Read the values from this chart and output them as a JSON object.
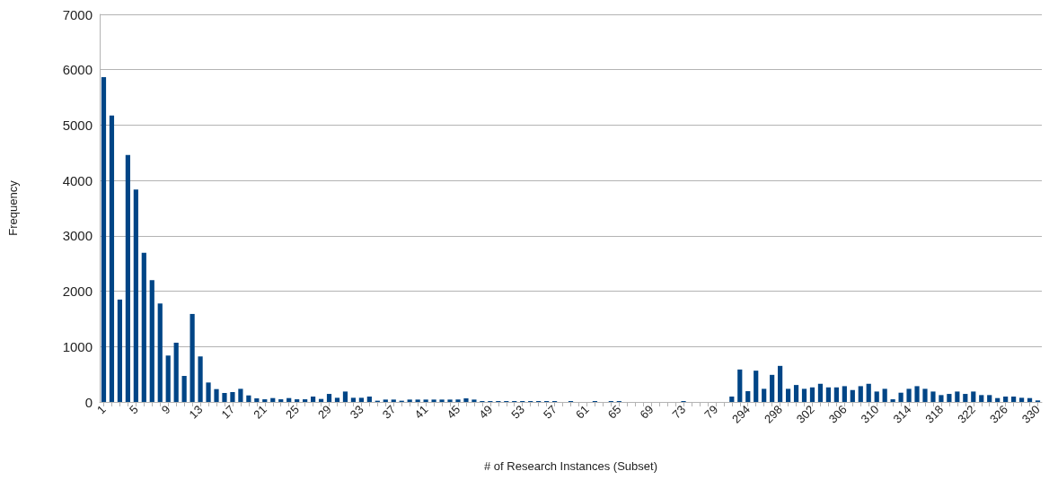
{
  "chart_data": {
    "type": "bar",
    "xlabel": "# of Research Instances (Subset)",
    "ylabel": "Frequency",
    "categories": [
      "1",
      null,
      null,
      null,
      "5",
      null,
      null,
      null,
      "9",
      null,
      null,
      null,
      "13",
      null,
      null,
      null,
      "17",
      null,
      null,
      null,
      "21",
      null,
      null,
      null,
      "25",
      null,
      null,
      null,
      "29",
      null,
      null,
      null,
      "33",
      null,
      null,
      null,
      "37",
      null,
      null,
      null,
      "41",
      null,
      null,
      null,
      "45",
      null,
      null,
      null,
      "49",
      null,
      null,
      null,
      "53",
      null,
      null,
      null,
      "57",
      null,
      null,
      null,
      "61",
      null,
      null,
      null,
      "65",
      null,
      null,
      null,
      "69",
      null,
      null,
      null,
      "73",
      null,
      null,
      null,
      "79",
      null,
      null,
      null,
      "294",
      null,
      null,
      null,
      "298",
      null,
      null,
      null,
      "302",
      null,
      null,
      null,
      "306",
      null,
      null,
      null,
      "310",
      null,
      null,
      null,
      "314",
      null,
      null,
      null,
      "318",
      null,
      null,
      null,
      "322",
      null,
      null,
      null,
      "326",
      null,
      null,
      null,
      "330"
    ],
    "values": [
      5865,
      5173,
      1849,
      4459,
      3838,
      2692,
      2200,
      1778,
      838,
      1070,
      470,
      1589,
      822,
      351,
      232,
      162,
      178,
      237,
      118,
      65,
      48,
      70,
      48,
      70,
      48,
      48,
      97,
      54,
      145,
      75,
      188,
      75,
      75,
      97,
      22,
      43,
      43,
      22,
      43,
      43,
      43,
      43,
      43,
      43,
      43,
      65,
      43,
      16,
      16,
      16,
      16,
      16,
      16,
      16,
      16,
      16,
      16,
      0,
      16,
      0,
      0,
      16,
      0,
      16,
      16,
      0,
      0,
      0,
      0,
      0,
      0,
      0,
      16,
      0,
      0,
      0,
      0,
      0,
      97,
      586,
      194,
      565,
      237,
      489,
      651,
      237,
      306,
      237,
      263,
      328,
      263,
      263,
      285,
      215,
      285,
      328,
      188,
      237,
      48,
      167,
      237,
      285,
      237,
      188,
      124,
      145,
      188,
      145,
      188,
      124,
      124,
      70,
      97,
      97,
      75,
      70,
      27
    ],
    "color": "#004586",
    "ylim": [
      0,
      7000
    ],
    "yticks": [
      0,
      1000,
      2000,
      3000,
      4000,
      5000,
      6000,
      7000
    ],
    "grid": "y"
  }
}
